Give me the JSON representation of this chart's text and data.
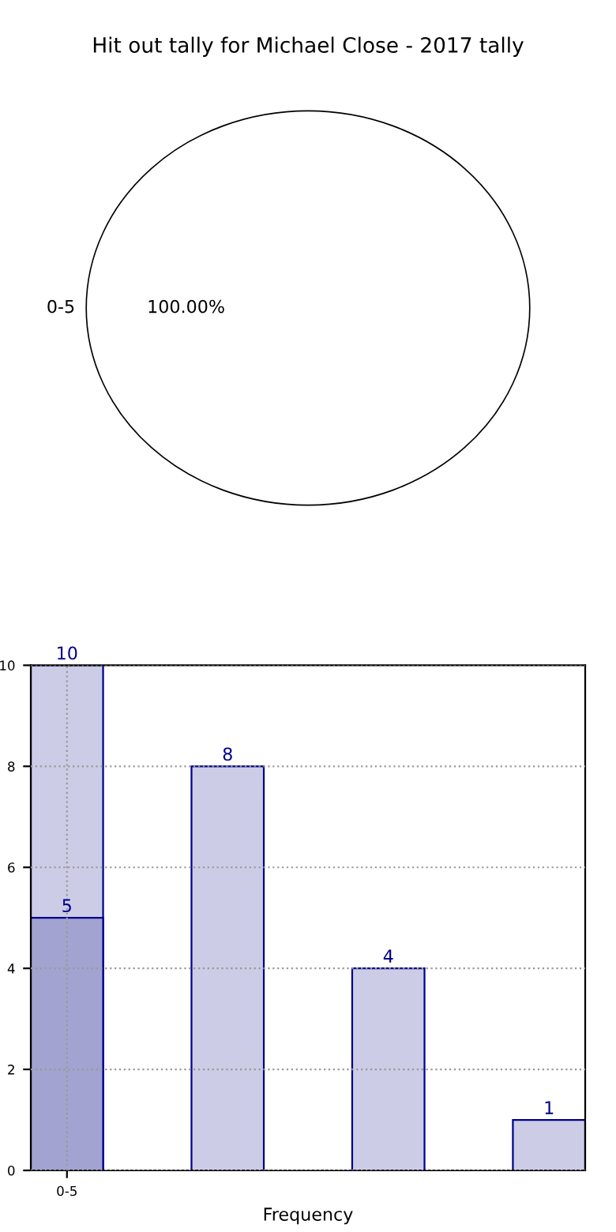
{
  "chart_data": [
    {
      "type": "pie",
      "title": "Hit out tally for Michael Close - 2017 tally",
      "categories": [
        "0-5"
      ],
      "values": [
        100
      ],
      "colors": [
        "#ffffff"
      ],
      "value_labels": [
        "100.00%"
      ]
    },
    {
      "type": "bar",
      "xlabel": "Frequency",
      "categories": [
        "0-5",
        null,
        null,
        null
      ],
      "ylim": [
        0,
        10
      ],
      "yticks": [
        0,
        2,
        4,
        6,
        8,
        10
      ],
      "grid": true,
      "data_labels": true,
      "series": [
        {
          "color": "#ccccE6",
          "values": [
            10,
            8,
            4,
            1
          ]
        },
        {
          "color": "#a3a3d1",
          "values": [
            5,
            null,
            null,
            null
          ]
        }
      ]
    }
  ]
}
